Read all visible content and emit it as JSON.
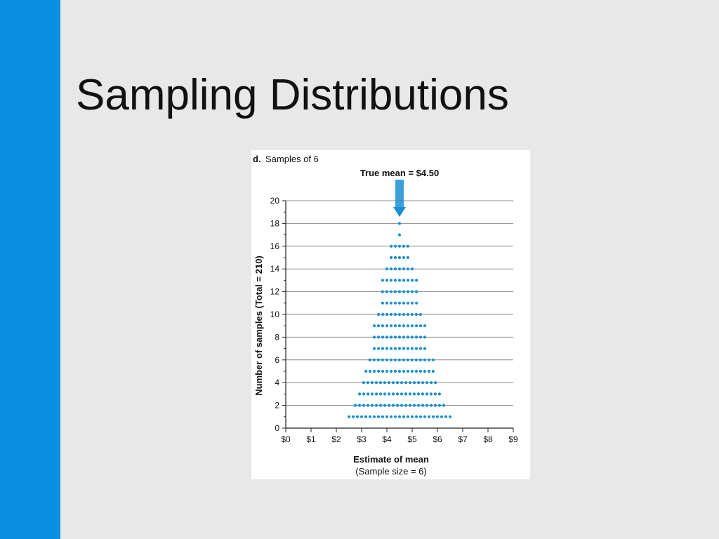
{
  "slide": {
    "title": "Sampling Distributions",
    "accent_color": "#0a90e0",
    "background_color": "#e8e8e8"
  },
  "chart_data": {
    "type": "scatter",
    "subtype": "dot-plot",
    "panel_letter": "d.",
    "panel_label": "Samples of 6",
    "annotation": "True mean = $4.50",
    "annotation_x": 4.5,
    "xlabel": "Estimate of mean",
    "xlabel_sub": "(Sample size = 6)",
    "ylabel": "Number of samples (Total = 210)",
    "xlim": [
      0,
      9
    ],
    "ylim": [
      0,
      20
    ],
    "x_ticks": [
      "$0",
      "$1",
      "$2",
      "$3",
      "$4",
      "$5",
      "$6",
      "$7",
      "$8",
      "$9"
    ],
    "y_ticks": [
      0,
      2,
      4,
      6,
      8,
      10,
      12,
      14,
      16,
      18,
      20
    ],
    "grid": "horizontal",
    "dot_color": "#1a8fd1",
    "arrow_color": "#1a8fd1",
    "rows": [
      {
        "count": 1,
        "x_min": 2.5,
        "x_max": 6.5
      },
      {
        "count": 2,
        "x_min": 2.75,
        "x_max": 6.25
      },
      {
        "count": 3,
        "x_min": 2.92,
        "x_max": 6.08
      },
      {
        "count": 4,
        "x_min": 3.08,
        "x_max": 5.92
      },
      {
        "count": 5,
        "x_min": 3.17,
        "x_max": 5.83
      },
      {
        "count": 6,
        "x_min": 3.33,
        "x_max": 5.83
      },
      {
        "count": 7,
        "x_min": 3.5,
        "x_max": 5.5
      },
      {
        "count": 8,
        "x_min": 3.5,
        "x_max": 5.5
      },
      {
        "count": 9,
        "x_min": 3.5,
        "x_max": 5.5
      },
      {
        "count": 10,
        "x_min": 3.67,
        "x_max": 5.33
      },
      {
        "count": 11,
        "x_min": 3.83,
        "x_max": 5.17
      },
      {
        "count": 12,
        "x_min": 3.83,
        "x_max": 5.17
      },
      {
        "count": 13,
        "x_min": 3.83,
        "x_max": 5.17
      },
      {
        "count": 14,
        "x_min": 4.0,
        "x_max": 5.0
      },
      {
        "count": 15,
        "x_min": 4.17,
        "x_max": 4.83
      },
      {
        "count": 16,
        "x_min": 4.17,
        "x_max": 4.83
      },
      {
        "count": 17,
        "x_min": 4.5,
        "x_max": 4.5
      },
      {
        "count": 18,
        "x_min": 4.5,
        "x_max": 4.5
      }
    ]
  }
}
